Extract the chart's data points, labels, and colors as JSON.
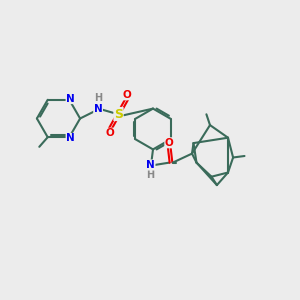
{
  "bg_color": "#ececec",
  "bond_color": "#3a6b5a",
  "bond_lw": 1.5,
  "dbl_off": 0.06,
  "atom_colors": {
    "N": "#0000ee",
    "O": "#ee0000",
    "S": "#cccc00",
    "H": "#888888",
    "C": "#3a6b5a"
  },
  "label_fs": 7.5,
  "fig_w": 3.0,
  "fig_h": 3.0,
  "dpi": 100,
  "xlim": [
    0,
    10
  ],
  "ylim": [
    0,
    10
  ]
}
